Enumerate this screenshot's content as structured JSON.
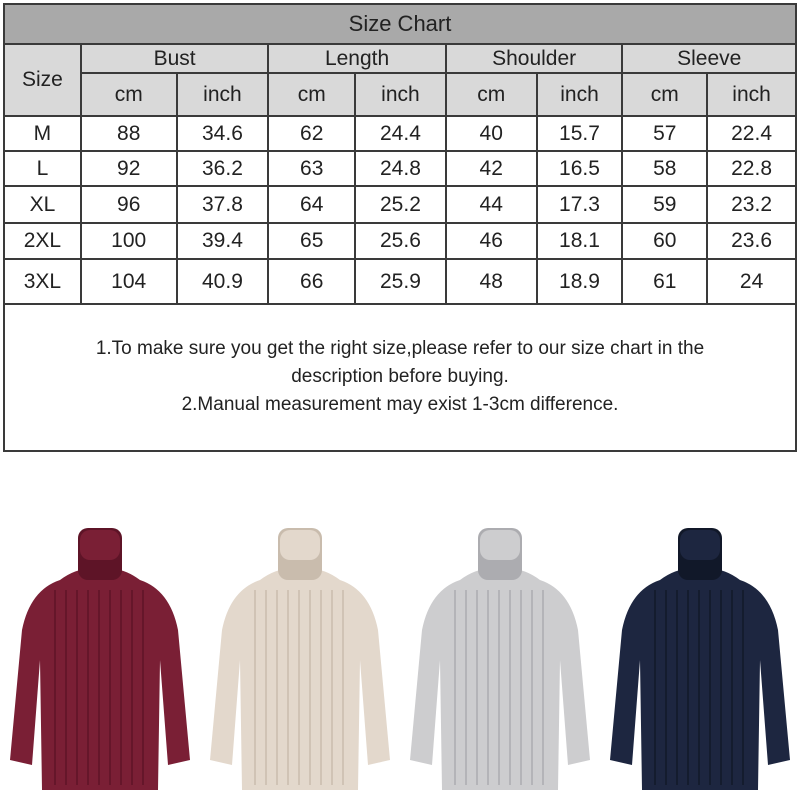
{
  "size_chart": {
    "title": "Size Chart",
    "size_header": "Size",
    "groups": [
      "Bust",
      "Length",
      "Shoulder",
      "Sleeve"
    ],
    "units": [
      "cm",
      "inch"
    ],
    "rows": [
      {
        "size": "M",
        "values": [
          "88",
          "34.6",
          "62",
          "24.4",
          "40",
          "15.7",
          "57",
          "22.4"
        ]
      },
      {
        "size": "L",
        "values": [
          "92",
          "36.2",
          "63",
          "24.8",
          "42",
          "16.5",
          "58",
          "22.8"
        ]
      },
      {
        "size": "XL",
        "values": [
          "96",
          "37.8",
          "64",
          "25.2",
          "44",
          "17.3",
          "59",
          "23.2"
        ]
      },
      {
        "size": "2XL",
        "values": [
          "100",
          "39.4",
          "65",
          "25.6",
          "46",
          "18.1",
          "60",
          "23.6"
        ]
      },
      {
        "size": "3XL",
        "values": [
          "104",
          "40.9",
          "66",
          "25.9",
          "48",
          "18.9",
          "61",
          "24"
        ]
      }
    ],
    "notes": [
      "1.To make sure you get the right size,please refer to our size chart in the",
      "description before buying.",
      "2.Manual measurement may exist 1-3cm difference."
    ]
  },
  "products": [
    {
      "color": "#7a1f35",
      "shade": "#5e1427"
    },
    {
      "color": "#e3d8cc",
      "shade": "#c9bcad"
    },
    {
      "color": "#cdcdcf",
      "shade": "#acacb0"
    },
    {
      "color": "#1d2640",
      "shade": "#111829"
    }
  ]
}
